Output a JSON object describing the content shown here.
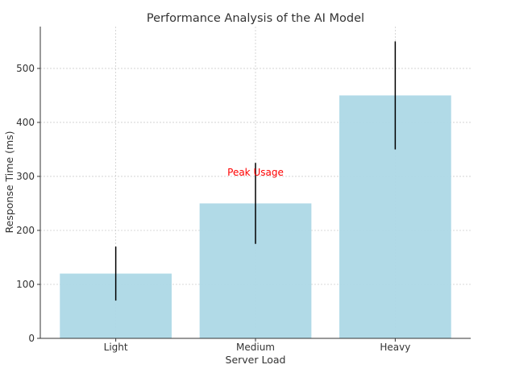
{
  "chart_data": {
    "type": "bar",
    "title": "Performance Analysis of the AI Model",
    "xlabel": "Server Load",
    "ylabel": "Response Time (ms)",
    "categories": [
      "Light",
      "Medium",
      "Heavy"
    ],
    "values": [
      120,
      250,
      450
    ],
    "errors": [
      50,
      75,
      100
    ],
    "ylim": [
      0,
      577.5
    ],
    "yticks": [
      0,
      100,
      200,
      300,
      400,
      500
    ],
    "grid": true,
    "bar_color": "#add8e6",
    "error_color": "#000000",
    "annotation": {
      "text": "Peak Usage",
      "category": "Medium",
      "y": 300,
      "color": "#ff0000"
    }
  }
}
